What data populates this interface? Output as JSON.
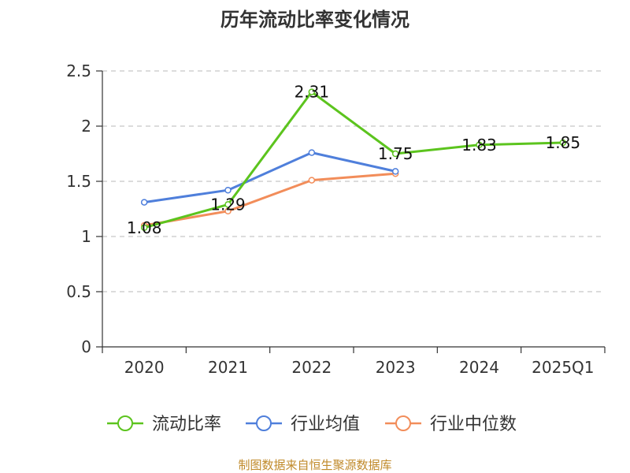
{
  "chart_data": {
    "type": "line",
    "title": "历年流动比率变化情况",
    "categories": [
      "2020",
      "2021",
      "2022",
      "2023",
      "2024",
      "2025Q1"
    ],
    "ylim": [
      0,
      2.5
    ],
    "yticks": [
      "0",
      "0.5",
      "1",
      "1.5",
      "2",
      "2.5"
    ],
    "grid": true,
    "legend_position": "bottom",
    "series": [
      {
        "name": "流动比率",
        "color": "#5cc41e",
        "values": [
          1.08,
          1.29,
          2.31,
          1.75,
          1.83,
          1.85
        ],
        "labels": [
          "1.08",
          "1.29",
          "2.31",
          "1.75",
          "1.83",
          "1.85"
        ]
      },
      {
        "name": "行业均值",
        "color": "#4f7fdb",
        "values": [
          1.31,
          1.42,
          1.76,
          1.59,
          null,
          null
        ]
      },
      {
        "name": "行业中位数",
        "color": "#f28d5a",
        "values": [
          1.1,
          1.23,
          1.51,
          1.57,
          null,
          null
        ]
      }
    ],
    "source": "制图数据来自恒生聚源数据库"
  }
}
